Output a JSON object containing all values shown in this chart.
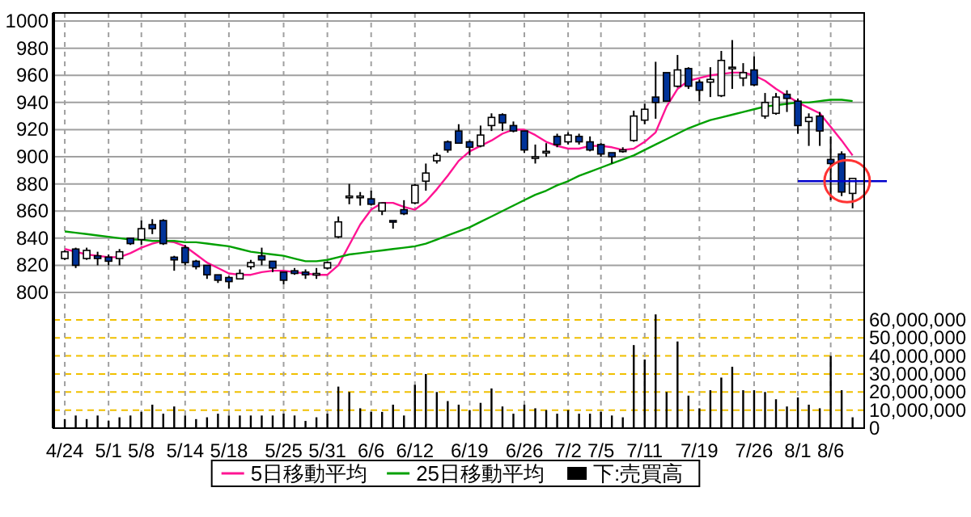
{
  "chart_data": {
    "type": "candlestick",
    "categories": [
      "4/24",
      null,
      null,
      null,
      "5/1",
      null,
      null,
      "5/8",
      null,
      null,
      null,
      "5/14",
      null,
      null,
      null,
      "5/18",
      null,
      null,
      null,
      null,
      "5/25",
      null,
      null,
      null,
      "5/31",
      null,
      null,
      null,
      "6/6",
      null,
      null,
      null,
      "6/12",
      null,
      null,
      null,
      null,
      "6/19",
      null,
      null,
      null,
      null,
      "6/26",
      null,
      null,
      null,
      "7/2",
      null,
      null,
      "7/5",
      null,
      null,
      null,
      "7/11",
      null,
      null,
      null,
      null,
      "7/19",
      null,
      null,
      null,
      null,
      "7/26",
      null,
      null,
      null,
      "8/1",
      null,
      null,
      "8/6",
      null,
      null
    ],
    "ohlc": [
      [
        825,
        831,
        824,
        830
      ],
      [
        832,
        833,
        818,
        820
      ],
      [
        825,
        833,
        824,
        831
      ],
      [
        827,
        830,
        820,
        825
      ],
      [
        826,
        828,
        820,
        823
      ],
      [
        825,
        832,
        820,
        830
      ],
      [
        840,
        840,
        835,
        836
      ],
      [
        839,
        853,
        835,
        847
      ],
      [
        850,
        854,
        843,
        847
      ],
      [
        853,
        854,
        835,
        836
      ],
      [
        826,
        827,
        816,
        824
      ],
      [
        833,
        835,
        820,
        822
      ],
      [
        823,
        824,
        817,
        819
      ],
      [
        820,
        820,
        810,
        813
      ],
      [
        813,
        813,
        807,
        809
      ],
      [
        811,
        812,
        803,
        808
      ],
      [
        810,
        817,
        810,
        814
      ],
      [
        819,
        824,
        817,
        822
      ],
      [
        827,
        833,
        820,
        824
      ],
      [
        823,
        823,
        815,
        818
      ],
      [
        815,
        815,
        806,
        809
      ],
      [
        816,
        818,
        813,
        814
      ],
      [
        815,
        817,
        810,
        813
      ],
      [
        813,
        818,
        810,
        814
      ],
      [
        818,
        823,
        817,
        822
      ],
      [
        841,
        856,
        840,
        852
      ],
      [
        871,
        880,
        865,
        871
      ],
      [
        871,
        874,
        864,
        871
      ],
      [
        869,
        875,
        864,
        865
      ],
      [
        860,
        866,
        857,
        866
      ],
      [
        853,
        853,
        847,
        852
      ],
      [
        861,
        868,
        857,
        858
      ],
      [
        866,
        880,
        865,
        879
      ],
      [
        882,
        895,
        875,
        888
      ],
      [
        897,
        903,
        895,
        901
      ],
      [
        911,
        912,
        903,
        905
      ],
      [
        919,
        924,
        910,
        910
      ],
      [
        911,
        912,
        901,
        907
      ],
      [
        908,
        923,
        907,
        916
      ],
      [
        923,
        932,
        919,
        929
      ],
      [
        931,
        932,
        919,
        925
      ],
      [
        923,
        926,
        918,
        919
      ],
      [
        919,
        919,
        903,
        905
      ],
      [
        900,
        909,
        895,
        900
      ],
      [
        904,
        910,
        900,
        904
      ],
      [
        915,
        917,
        907,
        909
      ],
      [
        911,
        918,
        909,
        916
      ],
      [
        915,
        917,
        909,
        911
      ],
      [
        911,
        915,
        904,
        905
      ],
      [
        909,
        910,
        900,
        902
      ],
      [
        903,
        903,
        895,
        900
      ],
      [
        904,
        907,
        903,
        905
      ],
      [
        912,
        934,
        911,
        930
      ],
      [
        927,
        939,
        924,
        935
      ],
      [
        944,
        970,
        928,
        940
      ],
      [
        962,
        962,
        941,
        941
      ],
      [
        952,
        975,
        951,
        964
      ],
      [
        965,
        966,
        950,
        952
      ],
      [
        955,
        957,
        941,
        949
      ],
      [
        955,
        966,
        944,
        957
      ],
      [
        945,
        978,
        944,
        971
      ],
      [
        965,
        986,
        950,
        966
      ],
      [
        958,
        969,
        952,
        962
      ],
      [
        964,
        974,
        952,
        953
      ],
      [
        930,
        947,
        928,
        940
      ],
      [
        932,
        947,
        931,
        944
      ],
      [
        946,
        949,
        933,
        943
      ],
      [
        941,
        943,
        917,
        923
      ],
      [
        926,
        932,
        908,
        929
      ],
      [
        930,
        933,
        908,
        919
      ],
      [
        898,
        915,
        868,
        895
      ],
      [
        902,
        904,
        871,
        874
      ],
      [
        873,
        884,
        862,
        884
      ]
    ],
    "series": [
      {
        "name": "5日移動平均",
        "type": "line",
        "color": "#ff1493",
        "values": [
          832,
          830,
          828,
          827,
          826,
          826,
          829,
          833,
          836,
          838,
          837,
          834,
          828,
          822,
          818,
          814,
          813,
          813,
          815,
          816,
          816,
          815,
          814,
          813,
          813,
          820,
          835,
          850,
          861,
          866,
          866,
          863,
          861,
          867,
          876,
          886,
          897,
          904,
          908,
          912,
          917,
          920,
          920,
          916,
          911,
          908,
          906,
          906,
          908,
          908,
          907,
          905,
          906,
          911,
          918,
          937,
          950,
          956,
          958,
          960,
          961,
          962,
          962,
          960,
          956,
          950,
          945,
          940,
          936,
          932,
          922,
          912,
          901
        ]
      },
      {
        "name": "25日移動平均",
        "type": "line",
        "color": "#00a000",
        "values": [
          845,
          844,
          843,
          842,
          841,
          840,
          839,
          839,
          838,
          838,
          838,
          837,
          837,
          836,
          835,
          834,
          832,
          830,
          829,
          828,
          827,
          825,
          823,
          823,
          824,
          826,
          828,
          829,
          830,
          831,
          832,
          833,
          834,
          836,
          839,
          842,
          845,
          848,
          852,
          856,
          860,
          864,
          868,
          872,
          875,
          879,
          882,
          886,
          889,
          892,
          895,
          898,
          901,
          905,
          909,
          913,
          917,
          921,
          924,
          927,
          929,
          931,
          933,
          935,
          937,
          938,
          939,
          940,
          940,
          941,
          942,
          942,
          941
        ]
      },
      {
        "name": "下:売買高",
        "type": "bar",
        "axis": "y2",
        "color": "#000000",
        "values": [
          5000000,
          7000000,
          5000000,
          7000000,
          4000000,
          6000000,
          7000000,
          9000000,
          13000000,
          8000000,
          12000000,
          7000000,
          5000000,
          6000000,
          8000000,
          7000000,
          7000000,
          7000000,
          7000000,
          7000000,
          8000000,
          7000000,
          4000000,
          6000000,
          8000000,
          23000000,
          20000000,
          11000000,
          9000000,
          9000000,
          13000000,
          7000000,
          24000000,
          30000000,
          20000000,
          15000000,
          13000000,
          10000000,
          14000000,
          22000000,
          12000000,
          8000000,
          13000000,
          11000000,
          10000000,
          8000000,
          10000000,
          8000000,
          8000000,
          9000000,
          7000000,
          6000000,
          46000000,
          38000000,
          63000000,
          20000000,
          48000000,
          18000000,
          11000000,
          21000000,
          28000000,
          34000000,
          21000000,
          21000000,
          20000000,
          16000000,
          12000000,
          17000000,
          13000000,
          11000000,
          40000000,
          21000000,
          6000000
        ]
      }
    ],
    "ylim": [
      700,
      1006
    ],
    "yticks": [
      800,
      820,
      840,
      860,
      880,
      900,
      920,
      940,
      960,
      980,
      1000
    ],
    "y2lim": [
      0,
      230000000
    ],
    "y2ticks": [
      0,
      {
        "value": 10000000,
        "label": "10,000,000"
      },
      {
        "value": 20000000,
        "label": "20,000,000"
      },
      {
        "value": 30000000,
        "label": "30,000,000"
      },
      {
        "value": 40000000,
        "label": "40,000,000"
      },
      {
        "value": 50000000,
        "label": "50,000,000"
      },
      {
        "value": 60000000,
        "label": "60,000,000"
      }
    ],
    "ref_lines": [
      {
        "axis": "y",
        "value": 882,
        "color": "#0000cc"
      }
    ],
    "grid": true,
    "legend": "bottom"
  }
}
